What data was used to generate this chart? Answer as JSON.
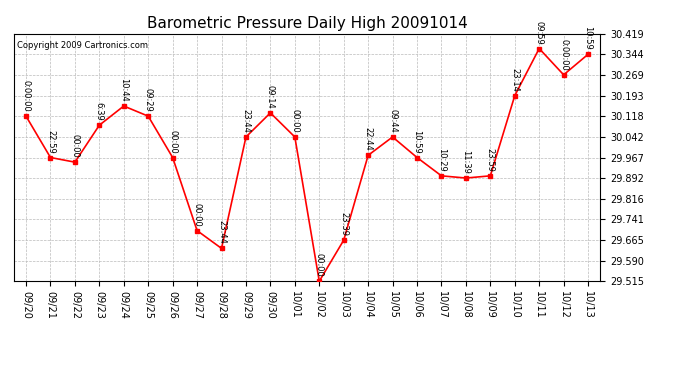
{
  "title": "Barometric Pressure Daily High 20091014",
  "copyright": "Copyright 2009 Cartronics.com",
  "x_labels": [
    "09/20",
    "09/21",
    "09/22",
    "09/23",
    "09/24",
    "09/25",
    "09/26",
    "09/27",
    "09/28",
    "09/29",
    "09/30",
    "10/01",
    "10/02",
    "10/03",
    "10/04",
    "10/05",
    "10/06",
    "10/07",
    "10/08",
    "10/09",
    "10/10",
    "10/11",
    "10/12",
    "10/13"
  ],
  "y_values": [
    30.118,
    29.967,
    29.95,
    30.085,
    30.155,
    30.118,
    29.967,
    29.7,
    29.635,
    30.042,
    30.13,
    30.042,
    29.515,
    29.665,
    29.975,
    30.042,
    29.967,
    29.9,
    29.892,
    29.9,
    30.193,
    30.365,
    30.269,
    30.344
  ],
  "point_labels": [
    "0:00:00",
    "22:59",
    "00:00",
    "6:39",
    "10:44",
    "09:29",
    "00:00",
    "00:00",
    "23:44",
    "23:44",
    "09:14",
    "00:00",
    "00:00",
    "23:39",
    "22:44",
    "09:44",
    "10:59",
    "10:29",
    "11:39",
    "23:59",
    "23:14",
    "09:59",
    "0:00:00",
    "10:59"
  ],
  "ylim_min": 29.515,
  "ylim_max": 30.419,
  "yticks": [
    29.515,
    29.59,
    29.665,
    29.741,
    29.816,
    29.892,
    29.967,
    30.042,
    30.118,
    30.193,
    30.269,
    30.344,
    30.419
  ],
  "line_color": "red",
  "marker_color": "red",
  "bg_color": "white",
  "grid_color": "#bbbbbb",
  "title_fontsize": 11,
  "tick_fontsize": 7,
  "copyright_fontsize": 6,
  "point_label_fontsize": 6
}
